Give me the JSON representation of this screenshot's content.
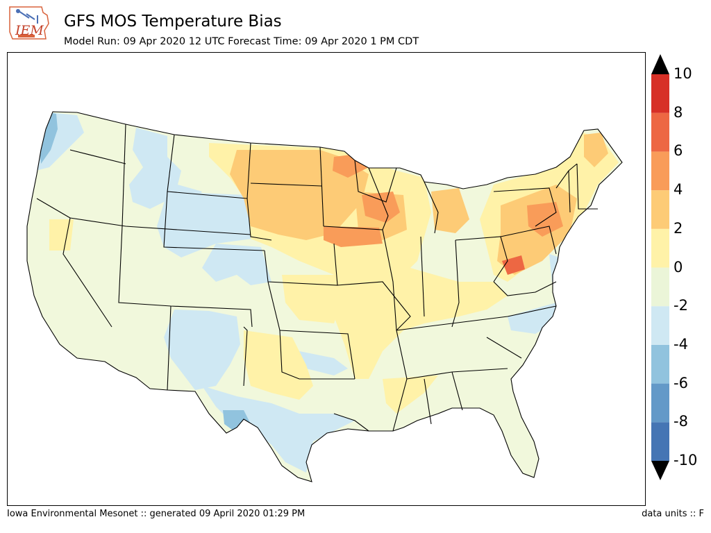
{
  "header": {
    "logo_text": "IEM",
    "title": "GFS MOS Temperature Bias",
    "subtitle": "Model Run: 09 Apr 2020 12 UTC Forecast Time: 09 Apr 2020 1 PM CDT"
  },
  "colorbar": {
    "levels": [
      -10,
      -8,
      -6,
      -4,
      -2,
      0,
      2,
      4,
      6,
      8,
      10
    ],
    "labels": [
      "10",
      "8",
      "6",
      "4",
      "2",
      "0",
      "-2",
      "-4",
      "-6",
      "-8",
      "-10"
    ],
    "colors": [
      "#4575b4",
      "#6399c8",
      "#91c3de",
      "#cfe8f3",
      "#ebf5d8",
      "#f7fbdc",
      "#fff2a8",
      "#fdcb76",
      "#f99c59",
      "#ed6743",
      "#d73027"
    ],
    "extend_low_color": "#000000",
    "extend_high_color": "#000000"
  },
  "map": {
    "region": "Contiguous United States",
    "variable": "temperature bias",
    "pattern_notes": [
      "positive bias Upper Midwest, Great Lakes, Northeast",
      "negative bias Rockies, Texas, Pacific Northwest coast"
    ]
  },
  "footer": {
    "left": "Iowa Environmental Mesonet :: generated 09 April 2020 01:29 PM",
    "right": "data units :: F"
  }
}
